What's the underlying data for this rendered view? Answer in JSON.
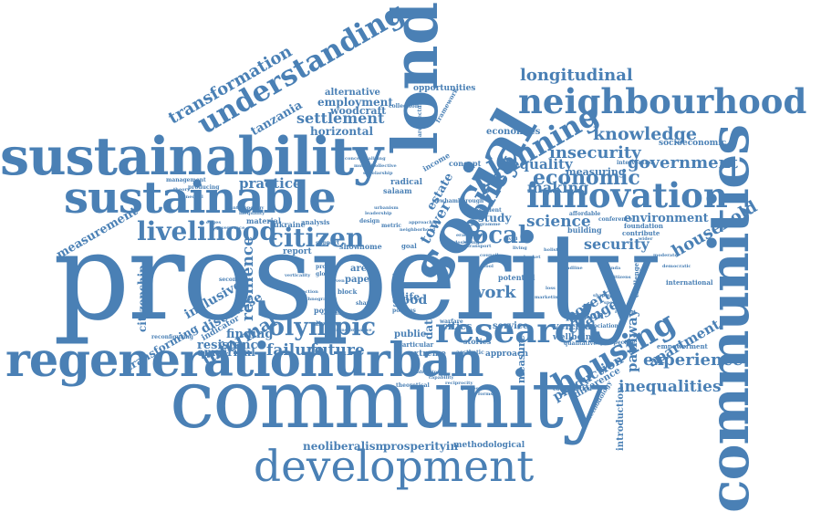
{
  "colors": {
    "word": "#4a80b5",
    "background": "#ffffff"
  },
  "words": {
    "prosperity": "prosperity",
    "community": "community",
    "communities": "communities",
    "regenerationurban": "regenerationurban",
    "sustainability": "sustainability",
    "sustainable": "sustainable",
    "london": "london",
    "social": "social",
    "development": "development",
    "neighbourhood": "neighbourhood",
    "innovation": "innovation",
    "understanding": "understanding",
    "research": "research",
    "livelihood": "livelihood",
    "citizen": "citizen",
    "olympic": "olympic",
    "housing": "housing",
    "planning": "planning",
    "economic": "economic",
    "policy": "policy",
    "local": "local",
    "transformation": "transformation",
    "longitudinal": "longitudinal",
    "knowledge": "knowledge",
    "government": "government",
    "insecurity": "insecurity",
    "equality": "equality",
    "household": "household",
    "measurement": "measurement",
    "science": "science",
    "security": "security",
    "environment": "environment",
    "experience": "experience",
    "inequalities": "inequalities",
    "apartment": "apartment",
    "pathway": "pathway",
    "production": "production",
    "resilience": "resilience",
    "informal": "informal",
    "failure": "failure",
    "future": "future",
    "settlement": "settlement",
    "tanzania": "tanzania",
    "employment": "employment",
    "practice": "practice",
    "citizenship": "citizenship",
    "inclusive": "inclusive",
    "discourse": "discourse",
    "resistance": "resistance",
    "finding": "finding",
    "transforming": "transforming",
    "empirical": "empirical",
    "neoliberalism": "neoliberalism",
    "prosperityin": "prosperityin",
    "methodological": "methodological",
    "poverty": "poverty",
    "change": "change",
    "work": "work",
    "making": "making",
    "study": "study",
    "tower": "tower",
    "estate": "estate",
    "horizontal": "horizontal",
    "alternative": "alternative",
    "woodcraft": "woodcraft",
    "economies": "economies",
    "measuring": "measuring",
    "cities": "cities",
    "data": "data",
    "good": "good",
    "public": "public",
    "extreme": "extreme",
    "approach": "approach",
    "service": "service",
    "vertical": "vertical",
    "wellbeing": "wellbeing",
    "measure": "measure",
    "difference": "difference",
    "introduction": "introduction",
    "person": "person",
    "opportunities": "opportunities",
    "management": "management",
    "material": "material",
    "ukraine": "ukraine",
    "report": "report",
    "show": "show",
    "home": "home",
    "area": "area",
    "paper": "paper",
    "block": "block",
    "power": "power",
    "diverse": "diverse",
    "indicator": "indicator",
    "life": "life",
    "park": "park",
    "stories": "stories",
    "building": "building",
    "radical": "radical",
    "salaam": "salaam",
    "contribute": "contribute",
    "association": "association",
    "perspective": "perspective",
    "empowerment": "empowerment",
    "international": "international",
    "challenge": "challenge",
    "socioeconomic": "socioeconomic",
    "foundation": "foundation",
    "analysis": "analysis",
    "design": "design",
    "metric": "metric",
    "goal": "goal",
    "theory": "theory",
    "concept": "concept",
    "income": "income",
    "framework": "framework",
    "architecture": "architecture",
    "collection": "collection",
    "intervention": "intervention",
    "affordable": "affordable",
    "conference": "conference",
    "construction": "construction",
    "qualitative": "qualitative",
    "methodology": "methodology",
    "producing": "producing",
    "reconfiguring": "reconfiguring",
    "secondary": "secondary",
    "unequal": "unequal",
    "edges": "edges",
    "potential": "potential",
    "city": "city",
    "governance": "governance",
    "anthropology": "anthropology",
    "inequality": "inequality",
    "verticality": "verticality",
    "policies": "policies",
    "global": "global",
    "driven": "driven",
    "provide": "provide",
    "particular": "particular",
    "aesthetic": "aesthetic",
    "warfare": "warfare",
    "theoretical": "theoretical",
    "reflection": "reflection",
    "ethnographic": "ethnographic",
    "newham": "newham",
    "borough": "borough",
    "resident": "resident",
    "content": "content",
    "programme": "programme",
    "transformative": "transformative",
    "conceptualising": "conceptualising",
    "multiple": "multiple",
    "scholarship": "scholarship",
    "collective": "collective",
    "leadership": "leadership",
    "urbanism": "urbanism",
    "approaching": "approaching",
    "neighborhood": "neighborhood",
    "eradicating": "eradicating",
    "redesigning": "redesigning",
    "transport": "transport",
    "council": "council",
    "tool": "tool",
    "support": "support",
    "lived": "lived",
    "living": "living",
    "basket": "basket",
    "holistic": "holistic",
    "societal": "societal",
    "breadline": "breadline",
    "marketing": "marketing",
    "shape": "shape",
    "loss": "loss",
    "agenda": "agenda",
    "citizens": "citizens",
    "shaping": "shaping",
    "specific": "specific",
    "relevant": "relevant",
    "wider": "wider",
    "moderate": "moderate",
    "democratic": "democratic",
    "addressing": "addressing",
    "capability": "capability",
    "reciprocity": "reciprocity",
    "processes": "processes",
    "forms": "forms"
  }
}
